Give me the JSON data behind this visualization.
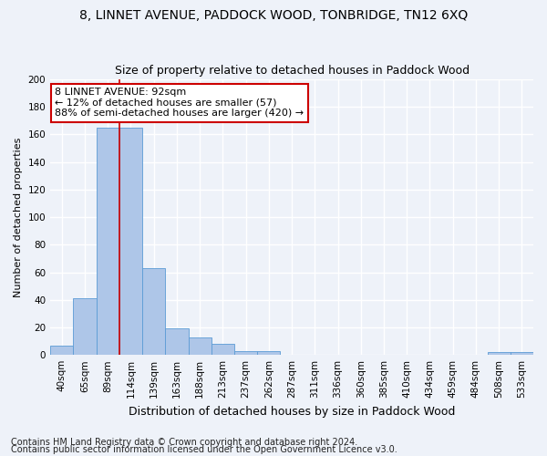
{
  "title": "8, LINNET AVENUE, PADDOCK WOOD, TONBRIDGE, TN12 6XQ",
  "subtitle": "Size of property relative to detached houses in Paddock Wood",
  "xlabel": "Distribution of detached houses by size in Paddock Wood",
  "ylabel": "Number of detached properties",
  "categories": [
    "40sqm",
    "65sqm",
    "89sqm",
    "114sqm",
    "139sqm",
    "163sqm",
    "188sqm",
    "213sqm",
    "237sqm",
    "262sqm",
    "287sqm",
    "311sqm",
    "336sqm",
    "360sqm",
    "385sqm",
    "410sqm",
    "434sqm",
    "459sqm",
    "484sqm",
    "508sqm",
    "533sqm"
  ],
  "values": [
    7,
    41,
    165,
    165,
    63,
    19,
    13,
    8,
    3,
    3,
    0,
    0,
    0,
    0,
    0,
    0,
    0,
    0,
    0,
    2,
    2
  ],
  "bar_color": "#aec6e8",
  "bar_edge_color": "#5b9bd5",
  "vline_x": 2.5,
  "vline_color": "#cc0000",
  "annotation_line1": "8 LINNET AVENUE: 92sqm",
  "annotation_line2": "← 12% of detached houses are smaller (57)",
  "annotation_line3": "88% of semi-detached houses are larger (420) →",
  "annotation_box_color": "#cc0000",
  "ylim": [
    0,
    200
  ],
  "yticks": [
    0,
    20,
    40,
    60,
    80,
    100,
    120,
    140,
    160,
    180,
    200
  ],
  "footer1": "Contains HM Land Registry data © Crown copyright and database right 2024.",
  "footer2": "Contains public sector information licensed under the Open Government Licence v3.0.",
  "bg_color": "#eef2f9",
  "grid_color": "#ffffff",
  "title_fontsize": 10,
  "subtitle_fontsize": 9,
  "xlabel_fontsize": 9,
  "ylabel_fontsize": 8,
  "tick_fontsize": 7.5,
  "annotation_fontsize": 8,
  "footer_fontsize": 7
}
